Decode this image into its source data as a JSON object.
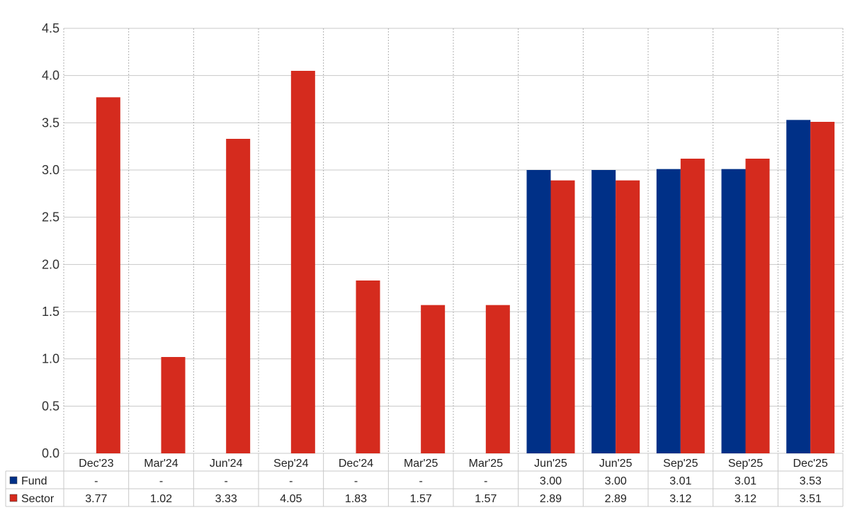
{
  "chart_data": {
    "type": "bar",
    "categories": [
      "Dec'23",
      "Mar'24",
      "Jun'24",
      "Sep'24",
      "Dec'24",
      "Mar'25",
      "Mar'25",
      "Jun'25",
      "Jun'25",
      "Sep'25",
      "Sep'25",
      "Dec'25"
    ],
    "series": [
      {
        "name": "Fund",
        "color": "#003087",
        "values": [
          null,
          null,
          null,
          null,
          null,
          null,
          null,
          3.0,
          3.0,
          3.01,
          3.01,
          3.53
        ],
        "labels": [
          "-",
          "-",
          "-",
          "-",
          "-",
          "-",
          "-",
          "3.00",
          "3.00",
          "3.01",
          "3.01",
          "3.53"
        ]
      },
      {
        "name": "Sector",
        "color": "#d52b1e",
        "values": [
          3.77,
          1.02,
          3.33,
          4.05,
          1.83,
          1.57,
          1.57,
          2.89,
          2.89,
          3.12,
          3.12,
          3.51
        ],
        "labels": [
          "3.77",
          "1.02",
          "3.33",
          "4.05",
          "1.83",
          "1.57",
          "1.57",
          "2.89",
          "2.89",
          "3.12",
          "3.12",
          "3.51"
        ]
      }
    ],
    "yticks": [
      "0.0",
      "0.5",
      "1.0",
      "1.5",
      "2.0",
      "2.5",
      "3.0",
      "3.5",
      "4.0",
      "4.5"
    ],
    "ylim": [
      0,
      4.5
    ],
    "grid": true,
    "legend": "bottom-left data table"
  }
}
